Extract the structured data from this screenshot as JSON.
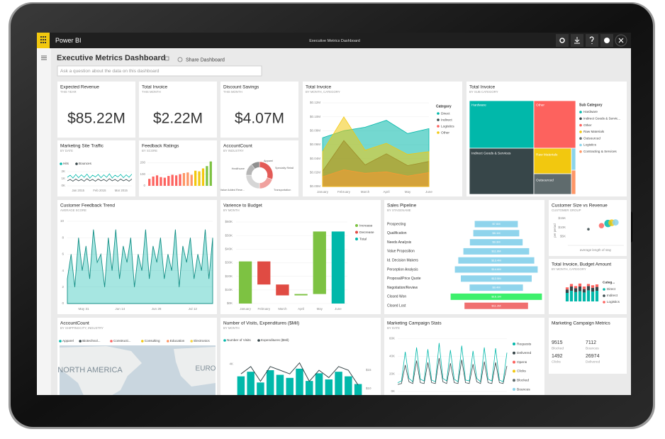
{
  "app_bar": {
    "app": "Power BI",
    "title": "Executive Metrics Dashboard"
  },
  "dashboard": {
    "title": "Executive Metrics Dashboard",
    "share": "Share Dashboard",
    "qna_placeholder": "Ask a question about the data on this dashboard"
  },
  "kpis": [
    {
      "title": "Expected Revenue",
      "subtitle": "THIS YEAR",
      "value": "$85.22M"
    },
    {
      "title": "Total Invoice",
      "subtitle": "THIS MONTH",
      "value": "$2.22M"
    },
    {
      "title": "Discount Savings",
      "subtitle": "THIS MONTH",
      "value": "$4.07M"
    }
  ],
  "invoice_area": {
    "title": "Total Invoice",
    "subtitle": "BY MONTH, CATEGORY",
    "legend_title": "Category",
    "categories": [
      "January",
      "February",
      "March",
      "April",
      "May",
      "June"
    ],
    "ylim": [
      0,
      0.12
    ],
    "yticks": [
      {
        "value": 0.12,
        "label": "$0.12M"
      },
      {
        "value": 0.1,
        "label": "$0.10M"
      },
      {
        "value": 0.08,
        "label": "$0.08M"
      },
      {
        "value": 0.06,
        "label": "$0.06M"
      },
      {
        "value": 0.04,
        "label": "$0.04M"
      },
      {
        "value": 0.02,
        "label": "$0.02M"
      },
      {
        "value": 0,
        "label": "$0.00M"
      }
    ],
    "series": [
      {
        "name": "Direct",
        "color": "#01b8aa",
        "values": [
          0.07,
          0.08,
          0.085,
          0.095,
          0.076,
          0.083
        ]
      },
      {
        "name": "Indirect",
        "color": "#374649",
        "values": [
          0.022,
          0.066,
          0.031,
          0.047,
          0.03,
          0.036
        ]
      },
      {
        "name": "Logistics",
        "color": "#fd625e",
        "values": [
          0.014,
          0.024,
          0.019,
          0.021,
          0.015,
          0.02
        ]
      },
      {
        "name": "Other",
        "color": "#f2c80f",
        "values": [
          0.05,
          0.1,
          0.052,
          0.062,
          0.046,
          0.05
        ]
      }
    ]
  },
  "treemap": {
    "title": "Total Invoice",
    "subtitle": "BY SUB CATEGORY",
    "legend_title": "Sub Category",
    "items": [
      {
        "name": "Hardware",
        "color": "#01b8aa"
      },
      {
        "name": "Indirect Goods & Servic...",
        "color": "#374649"
      },
      {
        "name": "Other",
        "color": "#fd625e"
      },
      {
        "name": "Raw Materials",
        "color": "#f2c80f"
      },
      {
        "name": "Outsourced",
        "color": "#5f6b6d"
      },
      {
        "name": "Logistics",
        "color": "#8ad4eb"
      },
      {
        "name": "Contracting & Services",
        "color": "#fe9666"
      }
    ],
    "tile_labels": [
      "Hardware",
      "Other",
      "Indirect Goods & Services",
      "Raw Materials",
      "Outsourced"
    ]
  },
  "site_traffic": {
    "title": "Marketing Site Traffic",
    "subtitle": "BY DATE",
    "x_labels": [
      "Jan 2015",
      "Feb 2015",
      "Mar 2015"
    ],
    "ylim": [
      0,
      2500
    ],
    "yticks": [
      {
        "value": 2000,
        "label": "2K"
      },
      {
        "value": 1000,
        "label": "1K"
      },
      {
        "value": 0,
        "label": "0K"
      }
    ],
    "series": [
      {
        "name": "Hits",
        "color": "#01b8aa",
        "values": [
          1200,
          1500,
          1100,
          1600,
          1150,
          1550,
          1200,
          1650,
          1100,
          1500,
          1250,
          1600,
          1150,
          1550,
          1200,
          1700,
          1100,
          1500,
          1250,
          1600,
          1150,
          1550,
          1200,
          1650
        ]
      },
      {
        "name": "Bounces",
        "color": "#374649",
        "values": [
          700,
          900,
          650,
          950,
          700,
          900,
          650,
          1000,
          700,
          900,
          650,
          950,
          700,
          900,
          650,
          1000,
          700,
          900,
          650,
          950,
          700,
          900,
          650,
          950
        ]
      }
    ]
  },
  "feedback": {
    "title": "Feedback Ratings",
    "subtitle": "BY SCORE",
    "ylim": [
      0,
      220
    ],
    "yticks": [
      200,
      100,
      0
    ],
    "values": [
      60,
      80,
      90,
      75,
      70,
      85,
      95,
      90,
      100,
      110,
      115,
      95,
      130,
      125,
      150,
      170,
      210
    ],
    "colors": [
      "#fd625e",
      "#fd625e",
      "#fd625e",
      "#fd625e",
      "#fd625e",
      "#fd625e",
      "#fd625e",
      "#fd625e",
      "#fd625e",
      "#fe9666",
      "#fe9666",
      "#fe9666",
      "#f2c80f",
      "#f2c80f",
      "#f2c80f",
      "#7dc242",
      "#7dc242"
    ]
  },
  "industry": {
    "title": "AccountCount",
    "subtitle": "BY INDUSTRY",
    "labels": [
      "Apparel",
      "Specialty Retail",
      "Transportation",
      "Value Added Rese...",
      "Healthcare"
    ],
    "values": [
      30,
      20,
      25,
      15,
      10
    ],
    "colors": [
      "#e35b57",
      "#f0a19e",
      "#d6d6d6",
      "#b5b5b5",
      "#8f8f8f"
    ]
  },
  "feedback_trend": {
    "title": "Customer Feedback Trend",
    "subtitle": "AVERAGE SCORE",
    "x_labels": [
      "May 31",
      "Jun 14",
      "Jun 28",
      "Jul 12"
    ],
    "ylim": [
      0,
      10
    ],
    "yticks": [
      10,
      8,
      6,
      4,
      2,
      0
    ],
    "color": "#01b8aa",
    "values": [
      3,
      6,
      2,
      8,
      4,
      7,
      3,
      9,
      5,
      6,
      2,
      8,
      4,
      9,
      3,
      7,
      5,
      8,
      2,
      6,
      4,
      9,
      3,
      7,
      5,
      8,
      3,
      6,
      4,
      9,
      2,
      7,
      5,
      8,
      3,
      6,
      4,
      9,
      3,
      8
    ]
  },
  "variance": {
    "title": "Varience to Budget",
    "subtitle": "BY MONTH",
    "categories": [
      "January",
      "February",
      "March",
      "April",
      "May",
      "June"
    ],
    "values": [
      31000,
      -17000,
      -8000,
      1000,
      46000,
      53000
    ],
    "ylim": [
      0,
      60000
    ],
    "yticks": [
      {
        "value": 60000,
        "label": "$60K"
      },
      {
        "value": 50000,
        "label": "$50K"
      },
      {
        "value": 40000,
        "label": "$40K"
      },
      {
        "value": 30000,
        "label": "$30K"
      },
      {
        "value": 20000,
        "label": "$20K"
      },
      {
        "value": 10000,
        "label": "$10K"
      },
      {
        "value": 0,
        "label": "$0K"
      }
    ],
    "legend": [
      {
        "name": "Increase",
        "color": "#7dc242"
      },
      {
        "name": "Decrease",
        "color": "#e04b43"
      },
      {
        "name": "Total",
        "color": "#01b8aa"
      }
    ]
  },
  "pipeline": {
    "title": "Sales Pipeline",
    "subtitle": "BY STAGENAME",
    "categories": [
      "Prospecting",
      "Qualification",
      "Needs Analysis",
      "Value Proposition",
      "Id. Decision Makers",
      "Perception Analysis",
      "Proposal/Price Quote",
      "Negotiation/Review",
      "Closed Won",
      "Closed Lost"
    ],
    "values": [
      7.6,
      8.1,
      9.3,
      11.6,
      13.4,
      14.6,
      12.5,
      9.4,
      16.1,
      11.2
    ],
    "value_labels": [
      "$7.6M",
      "$8.1M",
      "$9.3M",
      "$11.6M",
      "$13.4M",
      "$14.6M",
      "$12.5M",
      "$9.4M",
      "$16.1M",
      "$11.2M"
    ],
    "colors": [
      "#8fd4ec",
      "#8fd4ec",
      "#8fd4ec",
      "#8fd4ec",
      "#8fd4ec",
      "#8fd4ec",
      "#8fd4ec",
      "#8fd4ec",
      "#3df06c",
      "#f07070"
    ]
  },
  "customer_size": {
    "title": "Customer Size vs Revenue",
    "subtitle": "CUSTOMER GROUP",
    "x_label": "average length of stay",
    "y_label": "per period",
    "xlim": [
      0,
      6
    ],
    "ylim": [
      0,
      17000
    ],
    "yticks": [
      {
        "value": 15000,
        "label": "$15K"
      },
      {
        "value": 10000,
        "label": "$10K"
      },
      {
        "value": 5000,
        "label": "$5K"
      }
    ],
    "x": [
      2.2,
      3.6,
      4.3,
      4.7,
      5.1
    ],
    "y": [
      9000,
      11000,
      12200,
      12600,
      12800
    ],
    "sizes": [
      1.2,
      2.5,
      3.5,
      3.2,
      3
    ],
    "colors": [
      "#374649",
      "#fd625e",
      "#01b8aa",
      "#f2c80f",
      "#8ad4eb"
    ]
  },
  "budget": {
    "title": "Total Invoice, Budget Amount",
    "subtitle": "BY MONTH, CATEGORY",
    "legend_title": "Categ...",
    "ylim": [
      0,
      50
    ],
    "series": [
      {
        "name": "Direct",
        "color": "#01b8aa",
        "values": [
          20,
          25,
          22,
          24,
          21,
          26,
          23,
          25
        ]
      },
      {
        "name": "Indirect",
        "color": "#374649",
        "values": [
          8,
          10,
          9,
          11,
          8,
          10,
          9,
          9
        ]
      },
      {
        "name": "Logistics",
        "color": "#fd625e",
        "values": [
          5,
          6,
          5,
          7,
          6,
          5,
          6,
          6
        ]
      }
    ]
  },
  "account_map": {
    "title": "AccountCount",
    "subtitle": "BY SHIPPINGCITY, INDUSTRY",
    "legend": [
      {
        "name": "Apparel",
        "color": "#01b8aa"
      },
      {
        "name": "Biotechnol...",
        "color": "#374649"
      },
      {
        "name": "Constructi...",
        "color": "#fd625e"
      },
      {
        "name": "Consulting",
        "color": "#f2c80f"
      },
      {
        "name": "Education",
        "color": "#fe9666"
      },
      {
        "name": "Electronics",
        "color": "#f5d33f"
      }
    ],
    "map_labels": [
      "NORTH AMERICA",
      "EURO"
    ]
  },
  "visits": {
    "title": "Number of Visits, Expenditures ($Mil)",
    "subtitle": "BY MONTH",
    "ylim": [
      0,
      6000
    ],
    "yticks": [
      {
        "value": 4000,
        "label": "4K"
      }
    ],
    "y2lim": [
      0,
      25
    ],
    "y2ticks": [
      {
        "value": 15,
        "label": "$15"
      },
      {
        "value": 10,
        "label": "$10"
      }
    ],
    "series": [
      {
        "name": "Number of Visits",
        "color": "#01b8aa",
        "values": [
          3200,
          3500,
          2800,
          3600,
          3300,
          3100,
          3700,
          2900,
          3400,
          3000,
          3500,
          3200,
          2700
        ]
      },
      {
        "name": "Expenditures ($Mil)",
        "color": "#374649",
        "axis": "y2",
        "values": [
          14,
          16,
          12,
          16,
          15,
          14,
          17,
          12,
          15,
          13,
          16,
          15,
          11
        ]
      }
    ]
  },
  "campaign_stats": {
    "title": "Marketing Campaign Stats",
    "subtitle": "BY DATE",
    "ylim": [
      0,
      66000
    ],
    "yticks": [
      {
        "value": 60000,
        "label": "60K"
      },
      {
        "value": 40000,
        "label": "40K"
      },
      {
        "value": 20000,
        "label": "20K"
      },
      {
        "value": 0,
        "label": "0K"
      }
    ],
    "legend": [
      {
        "name": "Requests",
        "color": "#01b8aa"
      },
      {
        "name": "Delivered",
        "color": "#374649"
      },
      {
        "name": "Opens",
        "color": "#fd625e"
      },
      {
        "name": "Clicks",
        "color": "#f2c80f"
      },
      {
        "name": "Blocked",
        "color": "#5f6b6d"
      },
      {
        "name": "Bounces",
        "color": "#8ad4eb"
      },
      {
        "name": "Spam Reports",
        "color": "#fe9666"
      }
    ],
    "lines": [
      {
        "color": "#01b8aa",
        "values": [
          10000,
          12000,
          45000,
          15000,
          11000,
          50000,
          14000,
          12000,
          48000,
          13000,
          11000,
          55000,
          15000,
          12000,
          47000,
          14000,
          11000,
          52000,
          13000,
          12000,
          46000,
          15000,
          11000,
          50000,
          14000,
          12000,
          49000,
          13000,
          11000,
          44000
        ]
      },
      {
        "color": "#374649",
        "values": [
          8000,
          9000,
          30000,
          11000,
          9000,
          35000,
          10000,
          9000,
          33000,
          10000,
          9000,
          38000,
          11000,
          9000,
          32000,
          10000,
          9000,
          36000,
          10000,
          9000,
          31000,
          11000,
          9000,
          34000,
          10000,
          9000,
          33000,
          10000,
          9000,
          29000
        ]
      }
    ]
  },
  "campaign_metrics": {
    "title": "Marketing Campaign Metrics",
    "metrics": [
      {
        "value": 9515,
        "label": "Blocked"
      },
      {
        "value": 7112,
        "label": "Bounces"
      },
      {
        "value": 1492,
        "label": "Clicks"
      },
      {
        "value": 26974,
        "label": "Delivered"
      }
    ]
  }
}
